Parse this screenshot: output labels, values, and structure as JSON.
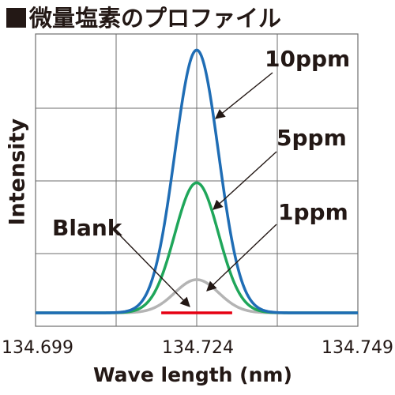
{
  "chart_data": {
    "type": "line",
    "title": "■微量塩素のプロファイル",
    "xlabel": "Wave length (nm)",
    "ylabel": "Intensity",
    "x_ticks": [
      "134.699",
      "134.724",
      "134.749"
    ],
    "xlim": [
      134.699,
      134.749
    ],
    "ylim": [
      0,
      1
    ],
    "grid": true,
    "peak_center": 134.724,
    "series": [
      {
        "name": "10ppm",
        "color": "#1f6db5",
        "peak": 0.99,
        "sigma": 0.0034
      },
      {
        "name": "5ppm",
        "color": "#1fa65a",
        "peak": 0.49,
        "sigma": 0.0034
      },
      {
        "name": "1ppm",
        "color": "#b4b4b4",
        "peak": 0.125,
        "sigma": 0.0034
      },
      {
        "name": "Blank",
        "color": "#e60012",
        "peak": 0.0,
        "sigma": 0.0034
      }
    ],
    "baseline": 0.03
  },
  "labels": {
    "title_text": "微量塩素のプロファイル",
    "ylabel": "Intensity",
    "xlabel": "Wave length (nm)",
    "tick_left": "134.699",
    "tick_mid": "134.724",
    "tick_right": "134.749",
    "callout_10ppm": "10ppm",
    "callout_5ppm": "5ppm",
    "callout_1ppm": "1ppm",
    "callout_blank": "Blank"
  }
}
